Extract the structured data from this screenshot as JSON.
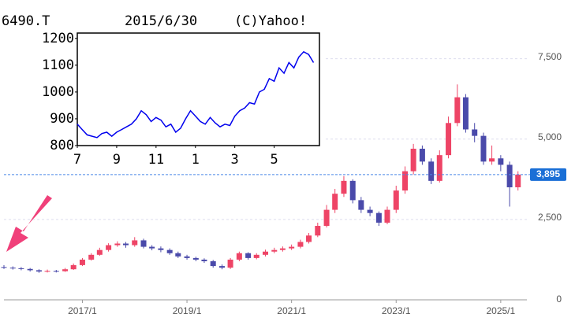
{
  "chart_data": [
    {
      "type": "candlestick",
      "x": [
        2015.5,
        2015.67,
        2015.83,
        2016,
        2016.17,
        2016.33,
        2016.5,
        2016.67,
        2016.83,
        2017,
        2017.17,
        2017.33,
        2017.5,
        2017.67,
        2017.83,
        2018,
        2018.17,
        2018.33,
        2018.5,
        2018.67,
        2018.83,
        2019,
        2019.17,
        2019.33,
        2019.5,
        2019.67,
        2019.83,
        2020,
        2020.17,
        2020.33,
        2020.5,
        2020.67,
        2020.83,
        2021,
        2021.17,
        2021.33,
        2021.5,
        2021.67,
        2021.83,
        2022,
        2022.17,
        2022.33,
        2022.5,
        2022.67,
        2022.83,
        2023,
        2023.17,
        2023.33,
        2023.5,
        2023.67,
        2023.83,
        2024,
        2024.17,
        2024.33,
        2024.5,
        2024.67,
        2024.83,
        2025,
        2025.17,
        2025.33
      ],
      "open": [
        1020,
        1000,
        980,
        960,
        920,
        880,
        900,
        890,
        950,
        1080,
        1250,
        1400,
        1550,
        1700,
        1750,
        1700,
        1850,
        1650,
        1600,
        1550,
        1450,
        1350,
        1300,
        1250,
        1200,
        1050,
        1000,
        1250,
        1450,
        1300,
        1400,
        1500,
        1550,
        1600,
        1650,
        1800,
        2000,
        2300,
        2800,
        3300,
        3700,
        3100,
        2800,
        2700,
        2400,
        2800,
        3400,
        4000,
        4700,
        4300,
        3700,
        4500,
        5500,
        6300,
        5300,
        5100,
        4300,
        4400,
        4200,
        3500
      ],
      "high": [
        1080,
        1040,
        1020,
        990,
        950,
        940,
        930,
        990,
        1130,
        1300,
        1450,
        1620,
        1760,
        1820,
        1800,
        1950,
        1900,
        1700,
        1660,
        1600,
        1500,
        1400,
        1340,
        1290,
        1240,
        1100,
        1300,
        1500,
        1480,
        1450,
        1560,
        1620,
        1660,
        1720,
        1870,
        2080,
        2400,
        2950,
        3450,
        3850,
        3750,
        3200,
        2900,
        2750,
        2900,
        3550,
        4150,
        4850,
        4800,
        4400,
        4650,
        5700,
        6700,
        6400,
        5500,
        5200,
        4800,
        4500,
        4300,
        4000
      ],
      "low": [
        960,
        940,
        920,
        880,
        840,
        850,
        850,
        870,
        930,
        1050,
        1220,
        1370,
        1500,
        1650,
        1620,
        1650,
        1600,
        1540,
        1480,
        1400,
        1300,
        1250,
        1200,
        1150,
        1000,
        950,
        960,
        1200,
        1250,
        1260,
        1350,
        1450,
        1500,
        1550,
        1600,
        1750,
        1950,
        2250,
        2700,
        3200,
        3000,
        2700,
        2600,
        2300,
        2350,
        2700,
        3300,
        3900,
        4200,
        3600,
        3650,
        4400,
        5400,
        5200,
        4900,
        4200,
        4200,
        4000,
        2900,
        3400
      ],
      "close": [
        1000,
        980,
        960,
        920,
        880,
        900,
        890,
        950,
        1080,
        1250,
        1400,
        1550,
        1700,
        1750,
        1700,
        1850,
        1650,
        1600,
        1550,
        1450,
        1350,
        1300,
        1250,
        1200,
        1050,
        1000,
        1250,
        1450,
        1300,
        1400,
        1500,
        1550,
        1600,
        1650,
        1800,
        2000,
        2300,
        2800,
        3300,
        3700,
        3100,
        2800,
        2700,
        2400,
        2800,
        3400,
        4000,
        4700,
        4300,
        3700,
        4500,
        5500,
        6300,
        5300,
        5100,
        4300,
        4400,
        4200,
        3500,
        3895
      ],
      "up_color": "#ee4466",
      "down_color": "#4a4aaa",
      "xlim": [
        2015.5,
        2025.5
      ],
      "xticks": [
        {
          "value": 2017,
          "label": "2017/1"
        },
        {
          "value": 2019,
          "label": "2019/1"
        },
        {
          "value": 2021,
          "label": "2021/1"
        },
        {
          "value": 2023,
          "label": "2023/1"
        },
        {
          "value": 2025,
          "label": "2025/1"
        }
      ],
      "ylim": [
        0,
        8200
      ],
      "yticks": [
        0,
        {
          "value": 2500,
          "label": "2,500"
        },
        {
          "value": 5000,
          "label": "5,000"
        },
        {
          "value": 7500,
          "label": "7,500"
        }
      ],
      "grid": true,
      "last_price": {
        "value": 3895,
        "label": "3,895"
      }
    },
    {
      "type": "line",
      "title": "6490.T",
      "subtitle": "2015/6/30",
      "annotation": "(C)Yahoo!",
      "x": [
        0,
        0.25,
        0.5,
        0.75,
        1,
        1.25,
        1.5,
        1.75,
        2,
        2.25,
        2.5,
        2.75,
        3,
        3.25,
        3.5,
        3.75,
        4,
        4.25,
        4.5,
        4.75,
        5,
        5.25,
        5.5,
        5.75,
        6,
        6.25,
        6.5,
        6.75,
        7,
        7.25,
        7.5,
        7.75,
        8,
        8.25,
        8.5,
        8.75,
        9,
        9.25,
        9.5,
        9.75,
        10,
        10.25,
        10.5,
        10.75,
        11,
        11.25,
        11.5,
        11.75,
        12
      ],
      "values": [
        880,
        860,
        840,
        835,
        830,
        845,
        850,
        835,
        850,
        860,
        870,
        880,
        900,
        930,
        915,
        890,
        905,
        895,
        870,
        880,
        850,
        865,
        900,
        930,
        910,
        890,
        880,
        905,
        885,
        870,
        880,
        875,
        910,
        930,
        940,
        960,
        955,
        1000,
        1010,
        1050,
        1040,
        1090,
        1070,
        1110,
        1090,
        1130,
        1150,
        1140,
        1110
      ],
      "color": "#0000ee",
      "xlim": [
        0,
        12.3
      ],
      "xticks": [
        {
          "value": 0,
          "label": "7"
        },
        {
          "value": 2,
          "label": "9"
        },
        {
          "value": 4,
          "label": "11"
        },
        {
          "value": 6,
          "label": "1"
        },
        {
          "value": 8,
          "label": "3"
        },
        {
          "value": 10,
          "label": "5"
        }
      ],
      "ylim": [
        800,
        1220
      ],
      "yticks": [
        800,
        900,
        1000,
        1100,
        1200
      ]
    }
  ]
}
